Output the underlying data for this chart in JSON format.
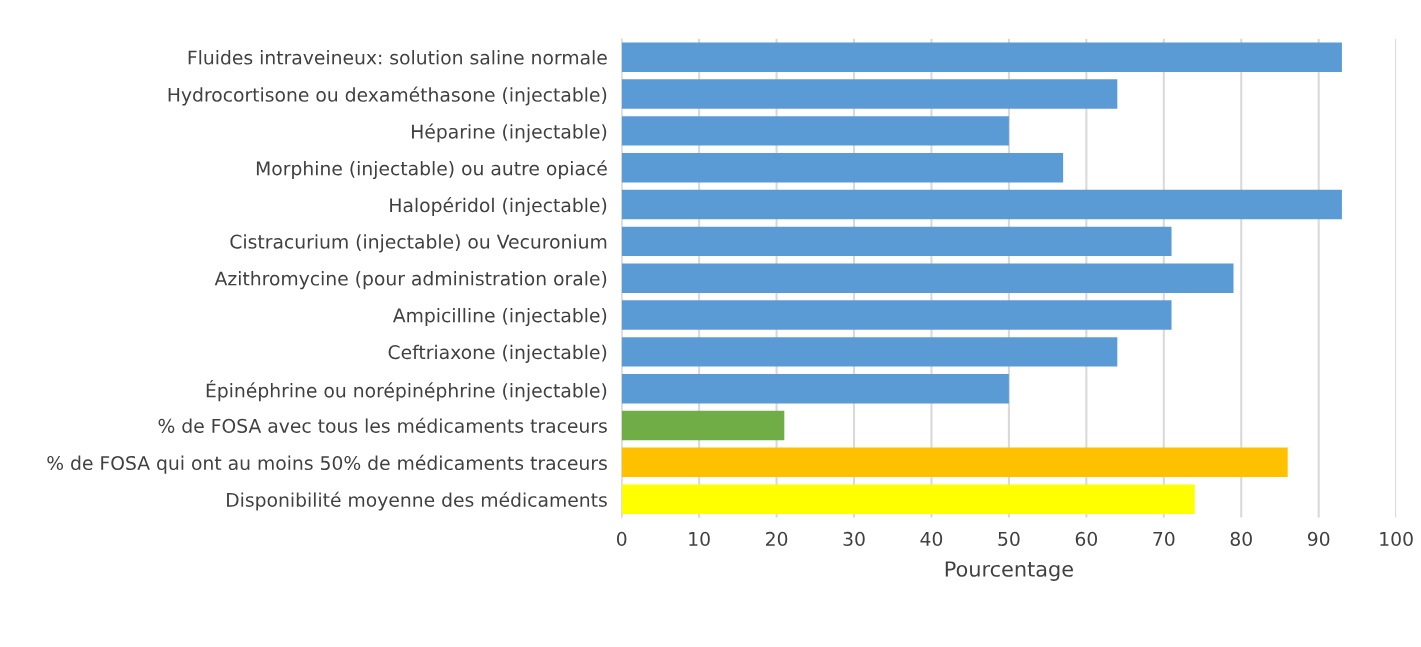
{
  "chart_data": {
    "type": "bar",
    "orientation": "horizontal",
    "xlabel": "Pourcentage",
    "categories": [
      "Fluides intraveineux: solution saline normale",
      "Hydrocortisone ou dexaméthasone (injectable)",
      "Héparine (injectable)",
      "Morphine (injectable) ou autre opiacé",
      "Halopéridol (injectable)",
      "Cistracurium (injectable) ou Vecuronium",
      "Azithromycine (pour administration orale)",
      "Ampicilline (injectable)",
      "Ceftriaxone (injectable)",
      "Épinéphrine ou norépinéphrine (injectable)",
      "% de FOSA avec tous les médicaments traceurs",
      "% de FOSA qui ont au moins 50% de médicaments traceurs",
      "Disponibilité moyenne des médicaments"
    ],
    "values": [
      93,
      64,
      50,
      57,
      93,
      71,
      79,
      71,
      64,
      50,
      21,
      86,
      74
    ],
    "colors": [
      "#5b9bd5",
      "#5b9bd5",
      "#5b9bd5",
      "#5b9bd5",
      "#5b9bd5",
      "#5b9bd5",
      "#5b9bd5",
      "#5b9bd5",
      "#5b9bd5",
      "#5b9bd5",
      "#70ad47",
      "#ffc000",
      "#ffff00"
    ],
    "xlim": [
      0,
      100
    ],
    "xticks": [
      0,
      10,
      20,
      30,
      40,
      50,
      60,
      70,
      80,
      90,
      100
    ],
    "grid": "x"
  }
}
